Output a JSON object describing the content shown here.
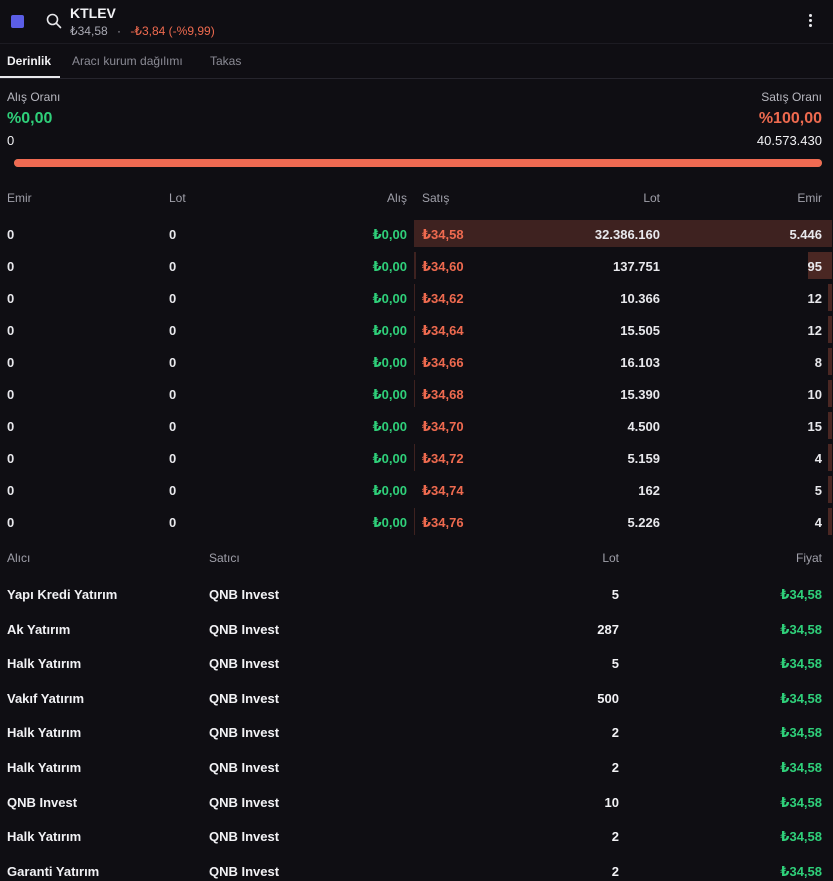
{
  "header": {
    "ticker": "KTLEV",
    "price": "₺34,58",
    "separator": "·",
    "change": "-₺3,84 (-%9,99)"
  },
  "tabs": [
    "Derinlik",
    "Aracı kurum dağılımı",
    "Takas"
  ],
  "ratios": {
    "buy_label": "Alış Oranı",
    "buy_value": "%0,00",
    "buy_qty": "0",
    "sell_label": "Satış Oranı",
    "sell_value": "%100,00",
    "sell_qty": "40.573.430",
    "sell_fraction": 1.0
  },
  "depth": {
    "headers": [
      "Emir",
      "Lot",
      "Alış",
      "Satış",
      "Lot",
      "Emir"
    ],
    "rows": [
      {
        "buy_emir": "0",
        "buy_lot": "0",
        "bid": "₺0,00",
        "ask": "₺34,58",
        "sell_lot": "32.386.160",
        "sell_emir": "5.446",
        "lot_fraction": 1.0,
        "emir_fraction": 1.0
      },
      {
        "buy_emir": "0",
        "buy_lot": "0",
        "bid": "₺0,00",
        "ask": "₺34,60",
        "sell_lot": "137.751",
        "sell_emir": "95",
        "lot_fraction": 0.0043,
        "emir_fraction": 0.0174
      },
      {
        "buy_emir": "0",
        "buy_lot": "0",
        "bid": "₺0,00",
        "ask": "₺34,62",
        "sell_lot": "10.366",
        "sell_emir": "12",
        "lot_fraction": 0.0003,
        "emir_fraction": 0.0022
      },
      {
        "buy_emir": "0",
        "buy_lot": "0",
        "bid": "₺0,00",
        "ask": "₺34,64",
        "sell_lot": "15.505",
        "sell_emir": "12",
        "lot_fraction": 0.0005,
        "emir_fraction": 0.0022
      },
      {
        "buy_emir": "0",
        "buy_lot": "0",
        "bid": "₺0,00",
        "ask": "₺34,66",
        "sell_lot": "16.103",
        "sell_emir": "8",
        "lot_fraction": 0.0005,
        "emir_fraction": 0.0015
      },
      {
        "buy_emir": "0",
        "buy_lot": "0",
        "bid": "₺0,00",
        "ask": "₺34,68",
        "sell_lot": "15.390",
        "sell_emir": "10",
        "lot_fraction": 0.0005,
        "emir_fraction": 0.0018
      },
      {
        "buy_emir": "0",
        "buy_lot": "0",
        "bid": "₺0,00",
        "ask": "₺34,70",
        "sell_lot": "4.500",
        "sell_emir": "15",
        "lot_fraction": 0.0001,
        "emir_fraction": 0.0028
      },
      {
        "buy_emir": "0",
        "buy_lot": "0",
        "bid": "₺0,00",
        "ask": "₺34,72",
        "sell_lot": "5.159",
        "sell_emir": "4",
        "lot_fraction": 0.0002,
        "emir_fraction": 0.0007
      },
      {
        "buy_emir": "0",
        "buy_lot": "0",
        "bid": "₺0,00",
        "ask": "₺34,74",
        "sell_lot": "162",
        "sell_emir": "5",
        "lot_fraction": 0.0,
        "emir_fraction": 0.0009
      },
      {
        "buy_emir": "0",
        "buy_lot": "0",
        "bid": "₺0,00",
        "ask": "₺34,76",
        "sell_lot": "5.226",
        "sell_emir": "4",
        "lot_fraction": 0.0002,
        "emir_fraction": 0.0007
      }
    ]
  },
  "trades": {
    "headers": [
      "Alıcı",
      "Satıcı",
      "Lot",
      "Fiyat"
    ],
    "rows": [
      {
        "buyer": "Yapı Kredi Yatırım",
        "seller": "QNB Invest",
        "lot": "5",
        "price": "₺34,58"
      },
      {
        "buyer": "Ak Yatırım",
        "seller": "QNB Invest",
        "lot": "287",
        "price": "₺34,58"
      },
      {
        "buyer": "Halk Yatırım",
        "seller": "QNB Invest",
        "lot": "5",
        "price": "₺34,58"
      },
      {
        "buyer": "Vakıf Yatırım",
        "seller": "QNB Invest",
        "lot": "500",
        "price": "₺34,58"
      },
      {
        "buyer": "Halk Yatırım",
        "seller": "QNB Invest",
        "lot": "2",
        "price": "₺34,58"
      },
      {
        "buyer": "Halk Yatırım",
        "seller": "QNB Invest",
        "lot": "2",
        "price": "₺34,58"
      },
      {
        "buyer": "QNB Invest",
        "seller": "QNB Invest",
        "lot": "10",
        "price": "₺34,58"
      },
      {
        "buyer": "Halk Yatırım",
        "seller": "QNB Invest",
        "lot": "2",
        "price": "₺34,58"
      },
      {
        "buyer": "Garanti Yatırım",
        "seller": "QNB Invest",
        "lot": "2",
        "price": "₺34,58"
      }
    ]
  },
  "colors": {
    "buy": "#2fd07a",
    "sell": "#ee6a4f",
    "accent": "#5b5ee6",
    "background": "#0f0e13"
  },
  "icons": [
    "app-square-icon",
    "search-icon",
    "kebab-menu-icon"
  ]
}
